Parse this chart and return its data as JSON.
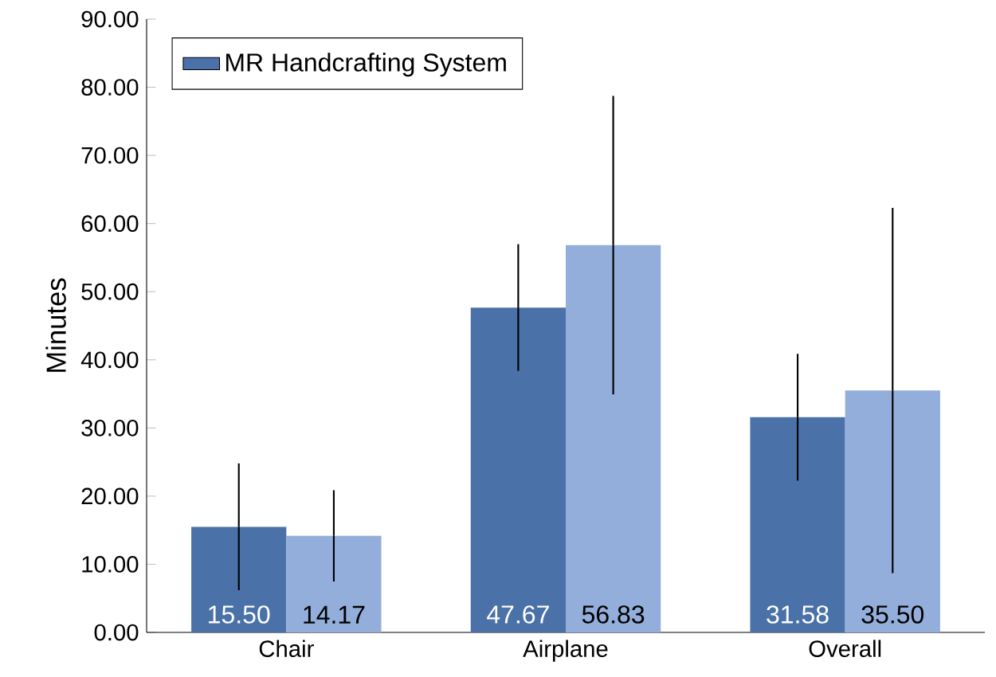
{
  "chart_data": {
    "type": "bar",
    "ylabel": "Minutes",
    "categories": [
      "Chair",
      "Airplane",
      "Overall"
    ],
    "series": [
      {
        "name": "MR Handcrafting System",
        "color": "#4a72a8",
        "values": [
          15.5,
          47.67,
          31.58
        ],
        "errors": [
          9.3,
          9.3,
          9.3
        ],
        "value_labels": [
          "15.50",
          "47.67",
          "31.58"
        ]
      },
      {
        "color": "#94aedb",
        "values": [
          14.17,
          56.83,
          35.5
        ],
        "errors": [
          6.7,
          21.9,
          26.8
        ],
        "value_labels": [
          "14.17",
          "56.83",
          "35.50"
        ]
      }
    ],
    "ylim": [
      0,
      90
    ],
    "yticks": [
      {
        "value": 0,
        "label": "0.00"
      },
      {
        "value": 10,
        "label": "10.00"
      },
      {
        "value": 20,
        "label": "20.00"
      },
      {
        "value": 30,
        "label": "30.00"
      },
      {
        "value": 40,
        "label": "40.00"
      },
      {
        "value": 50,
        "label": "50.00"
      },
      {
        "value": 60,
        "label": "60.00"
      },
      {
        "value": 70,
        "label": "70.00"
      },
      {
        "value": 80,
        "label": "80.00"
      },
      {
        "value": 90,
        "label": "90.00"
      }
    ],
    "grid": false,
    "legend": "top left"
  }
}
